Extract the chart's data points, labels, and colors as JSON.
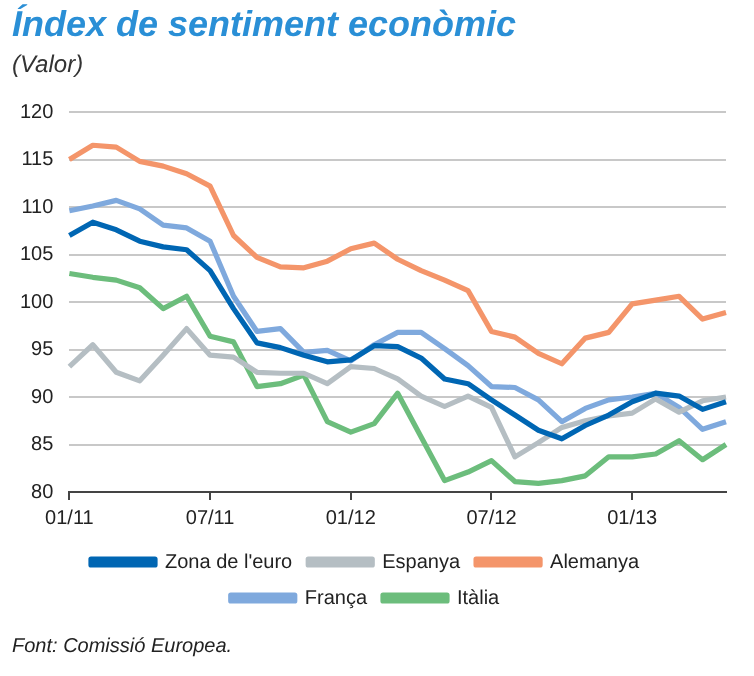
{
  "chart_data": {
    "type": "line",
    "title": "Índex de sentiment econòmic",
    "subtitle": "(Valor)",
    "annotations": [
      "Font: Comissió Europea."
    ],
    "categories": [
      "01/11",
      null,
      null,
      null,
      null,
      null,
      "07/11",
      null,
      null,
      null,
      null,
      null,
      "01/12",
      null,
      null,
      null,
      null,
      null,
      "07/12",
      null,
      null,
      null,
      null,
      null,
      "01/13",
      null,
      null,
      null,
      null
    ],
    "series": [
      {
        "name": "Zona de l'euro",
        "color": "#0066b3",
        "values": [
          107,
          108.4,
          107.6,
          106.4,
          105.8,
          105.5,
          103.3,
          99.3,
          95.7,
          95.2,
          94.4,
          93.7,
          93.9,
          95.4,
          95.3,
          94.1,
          91.9,
          91.4,
          89.7,
          88.1,
          86.5,
          85.6,
          87,
          88.1,
          89.5,
          90.4,
          90.1,
          88.7,
          89.5
        ]
      },
      {
        "name": "Espanya",
        "color": "#b5bec3",
        "values": [
          93.2,
          95.5,
          92.6,
          91.7,
          94.4,
          97.2,
          94.4,
          94.2,
          92.6,
          92.5,
          92.5,
          91.4,
          93.2,
          93,
          91.9,
          90.1,
          89,
          90.1,
          88.9,
          83.7,
          85.2,
          86.8,
          87.5,
          88,
          88.3,
          89.8,
          88.4,
          89.6,
          90
        ]
      },
      {
        "name": "Alemanya",
        "color": "#f4956a",
        "values": [
          115,
          116.5,
          116.3,
          114.8,
          114.3,
          113.5,
          112.2,
          107,
          104.7,
          103.7,
          103.6,
          104.3,
          105.6,
          106.2,
          104.5,
          103.3,
          102.3,
          101.2,
          96.9,
          96.3,
          94.6,
          93.5,
          96.2,
          96.8,
          99.8,
          100.2,
          100.6,
          98.2,
          98.9
        ]
      },
      {
        "name": "França",
        "color": "#7fa9dd",
        "values": [
          109.6,
          110.1,
          110.7,
          109.8,
          108.1,
          107.8,
          106.4,
          100.6,
          96.9,
          97.2,
          94.7,
          94.9,
          93.8,
          95.5,
          96.8,
          96.8,
          95.1,
          93.3,
          91.1,
          91,
          89.7,
          87.4,
          88.8,
          89.7,
          90,
          90.4,
          88.9,
          86.6,
          87.4
        ]
      },
      {
        "name": "Itàlia",
        "color": "#6cbd7c",
        "values": [
          103,
          102.6,
          102.3,
          101.5,
          99.3,
          100.6,
          96.4,
          95.8,
          91.1,
          91.4,
          92.3,
          87.4,
          86.3,
          87.2,
          90.4,
          85.8,
          81.2,
          82.1,
          83.3,
          81.1,
          80.9,
          81.2,
          81.7,
          83.7,
          83.7,
          84,
          85.4,
          83.4,
          85
        ]
      }
    ],
    "ylim": [
      80,
      120
    ],
    "yticks": [
      80,
      85,
      90,
      95,
      100,
      105,
      110,
      115,
      120
    ],
    "grid": "y",
    "legend": "bottom",
    "marker": "none",
    "line_style": "solid"
  }
}
